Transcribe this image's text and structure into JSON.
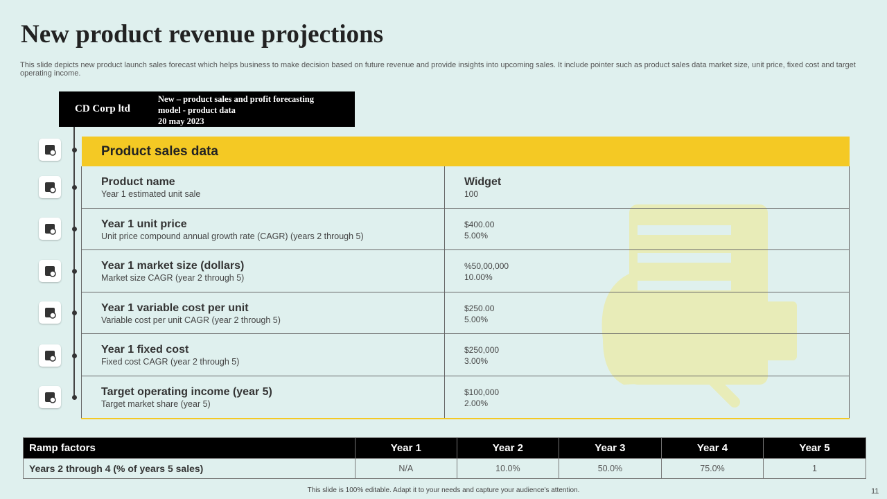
{
  "title": "New product revenue projections",
  "description": "This slide depicts new product launch sales forecast which helps business to make decision based on future revenue and provide insights into upcoming sales. It include pointer such as product sales data market size, unit price, fixed cost and target operating income.",
  "company": {
    "name": "CD Corp ltd",
    "lines": [
      "New – product sales and profit forecasting",
      "model  - product data",
      "20 may 2023"
    ]
  },
  "sales_table": {
    "header": "Product sales data",
    "rows": [
      {
        "label": "Product name",
        "sublabel": "Year 1 estimated unit sale",
        "value": "Widget",
        "subvalue": "100"
      },
      {
        "label": "Year 1 unit price",
        "sublabel": "Unit price compound annual growth rate (CAGR) (years 2 through  5)",
        "value": "$400.00",
        "subvalue": "5.00%"
      },
      {
        "label": "Year 1 market size (dollars)",
        "sublabel": "Market size CAGR (year 2 through 5)",
        "value": "%50,00,000",
        "subvalue": "10.00%"
      },
      {
        "label": "Year 1 variable cost per unit",
        "sublabel": "Variable cost per unit CAGR (year 2 through  5)",
        "value": "$250.00",
        "subvalue": "5.00%"
      },
      {
        "label": "Year 1 fixed cost",
        "sublabel": "Fixed cost CAGR (year 2 through  5)",
        "value": "$250,000",
        "subvalue": "3.00%"
      },
      {
        "label": "Target operating income (year 5)",
        "sublabel": "Target  market share (year 5)",
        "value": "$100,000",
        "subvalue": "2.00%"
      }
    ]
  },
  "ramp_table": {
    "columns": [
      "Ramp factors",
      "Year 1",
      "Year 2",
      "Year 3",
      "Year 4",
      "Year 5"
    ],
    "rows": [
      [
        "Years 2 through 4 (% of years 5 sales)",
        "N/A",
        "10.0%",
        "50.0%",
        "75.0%",
        "1"
      ]
    ]
  },
  "footer": "This slide is 100% editable.  Adapt it to your needs and capture your audience's attention.",
  "page_number": "11"
}
